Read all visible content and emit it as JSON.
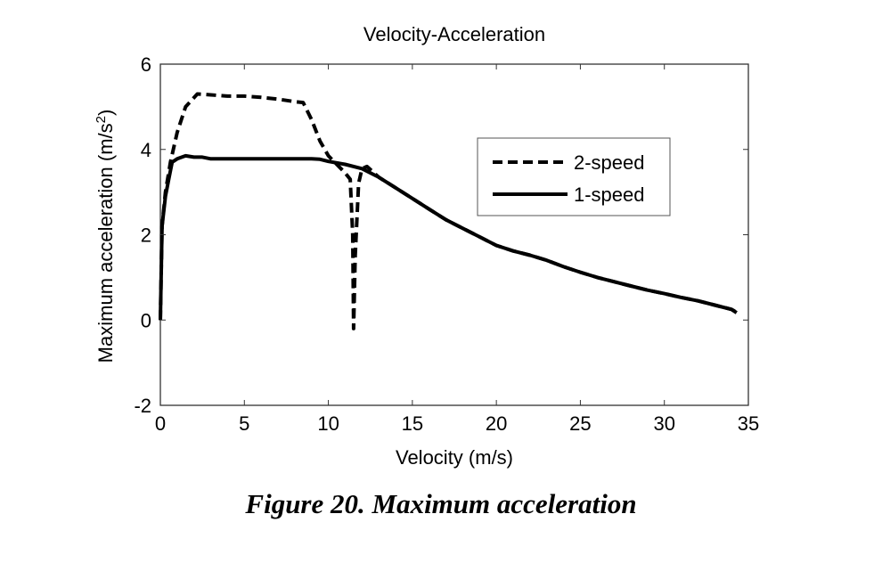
{
  "chart_data": {
    "type": "line",
    "title": "Velocity-Acceleration",
    "xlabel": "Velocity (m/s)",
    "ylabel_main": "Maximum acceleration (m/s",
    "ylabel_sup": "2",
    "ylabel_close": ")",
    "xlim": [
      0,
      35
    ],
    "ylim": [
      -2,
      6
    ],
    "xticks": [
      0,
      5,
      10,
      15,
      20,
      25,
      30,
      35
    ],
    "yticks": [
      -2,
      0,
      2,
      4,
      6
    ],
    "grid": false,
    "legend_position": "upper-right",
    "series": [
      {
        "name": "2-speed",
        "style": "dashed",
        "x": [
          0,
          0.1,
          0.3,
          0.6,
          1.0,
          1.5,
          2.2,
          3,
          4,
          5,
          6,
          7,
          8,
          8.5,
          9,
          9.5,
          10,
          10.5,
          11,
          11.3,
          11.45,
          11.5,
          11.6,
          11.8,
          12.0,
          12.3,
          13,
          14,
          15,
          16,
          17,
          18,
          19,
          20,
          21,
          22,
          23,
          24,
          25,
          26,
          27,
          28,
          29,
          30,
          31,
          32,
          33,
          34,
          34.3
        ],
        "y": [
          0,
          2.2,
          3.0,
          3.7,
          4.4,
          5.0,
          5.3,
          5.28,
          5.25,
          5.25,
          5.22,
          5.18,
          5.12,
          5.1,
          4.7,
          4.2,
          3.85,
          3.65,
          3.45,
          3.3,
          2.0,
          -0.2,
          1.5,
          3.2,
          3.55,
          3.6,
          3.35,
          3.1,
          2.85,
          2.6,
          2.35,
          2.15,
          1.95,
          1.75,
          1.62,
          1.52,
          1.4,
          1.25,
          1.12,
          1.0,
          0.9,
          0.8,
          0.7,
          0.62,
          0.53,
          0.45,
          0.35,
          0.25,
          0.18
        ]
      },
      {
        "name": "1-speed",
        "style": "solid",
        "x": [
          0,
          0.1,
          0.3,
          0.5,
          0.7,
          1.0,
          1.5,
          2.0,
          2.5,
          3.0,
          4,
          5,
          6,
          7,
          8,
          9,
          9.5,
          10,
          11,
          12,
          13,
          14,
          15,
          16,
          17,
          18,
          19,
          20,
          21,
          22,
          23,
          24,
          25,
          26,
          27,
          28,
          29,
          30,
          31,
          32,
          33,
          34,
          34.3
        ],
        "y": [
          0,
          2.2,
          2.9,
          3.3,
          3.7,
          3.78,
          3.85,
          3.82,
          3.82,
          3.78,
          3.78,
          3.78,
          3.78,
          3.78,
          3.78,
          3.78,
          3.77,
          3.72,
          3.65,
          3.55,
          3.35,
          3.1,
          2.85,
          2.6,
          2.35,
          2.15,
          1.95,
          1.75,
          1.62,
          1.52,
          1.4,
          1.25,
          1.12,
          1.0,
          0.9,
          0.8,
          0.7,
          0.62,
          0.53,
          0.45,
          0.35,
          0.25,
          0.17
        ]
      }
    ]
  },
  "caption": "Figure 20. Maximum acceleration"
}
